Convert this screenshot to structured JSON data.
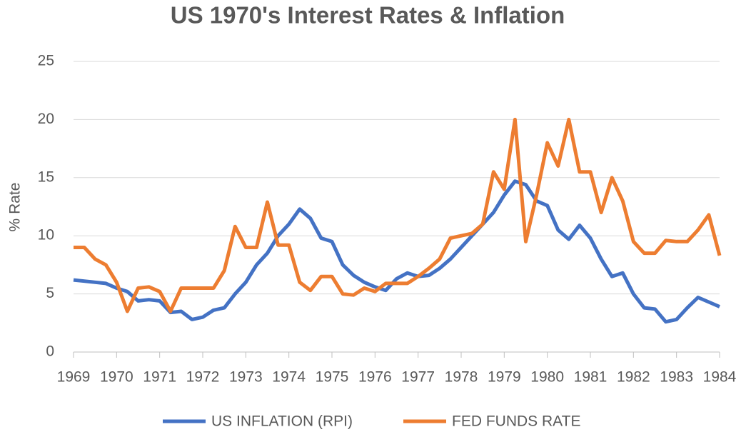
{
  "chart_data": {
    "type": "line",
    "title": "US 1970's Interest Rates & Inflation",
    "y_label": "% Rate",
    "x": [
      1969,
      1969.25,
      1969.5,
      1969.75,
      1970,
      1970.25,
      1970.5,
      1970.75,
      1971,
      1971.25,
      1971.5,
      1971.75,
      1972,
      1972.25,
      1972.5,
      1972.75,
      1973,
      1973.25,
      1973.5,
      1973.75,
      1974,
      1974.25,
      1974.5,
      1974.75,
      1975,
      1975.25,
      1975.5,
      1975.75,
      1976,
      1976.25,
      1976.5,
      1976.75,
      1977,
      1977.25,
      1977.5,
      1977.75,
      1978,
      1978.25,
      1978.5,
      1978.75,
      1979,
      1979.25,
      1979.5,
      1979.75,
      1980,
      1980.25,
      1980.5,
      1980.75,
      1981,
      1981.25,
      1981.5,
      1981.75,
      1982,
      1982.25,
      1982.5,
      1982.75,
      1983,
      1983.25,
      1983.5,
      1983.75,
      1984
    ],
    "series": [
      {
        "name": "US INFLATION (RPI)",
        "color": "#4472c4",
        "values": [
          6.2,
          6.1,
          6.0,
          5.9,
          5.5,
          5.2,
          4.4,
          4.5,
          4.4,
          3.4,
          3.5,
          2.8,
          3.0,
          3.6,
          3.8,
          5.0,
          6.0,
          7.5,
          8.5,
          10.0,
          11.0,
          12.3,
          11.5,
          9.8,
          9.5,
          7.5,
          6.6,
          6.0,
          5.6,
          5.3,
          6.3,
          6.8,
          6.5,
          6.6,
          7.2,
          8.0,
          9.0,
          10.0,
          11.0,
          12.0,
          13.5,
          14.7,
          14.4,
          13.0,
          12.6,
          10.5,
          9.7,
          10.9,
          9.8,
          8.0,
          6.5,
          6.8,
          5.0,
          3.8,
          3.7,
          2.6,
          2.8,
          3.8,
          4.7,
          4.3,
          3.9
        ]
      },
      {
        "name": "FED FUNDS RATE",
        "color": "#ed7d31",
        "values": [
          9.0,
          9.0,
          8.0,
          7.5,
          6.0,
          3.5,
          5.5,
          5.6,
          5.2,
          3.5,
          5.5,
          5.5,
          5.5,
          5.5,
          7.0,
          10.8,
          9.0,
          9.0,
          12.9,
          9.2,
          9.2,
          6.0,
          5.3,
          6.5,
          6.5,
          5.0,
          4.9,
          5.5,
          5.2,
          5.9,
          5.9,
          5.9,
          6.5,
          7.2,
          8.0,
          9.8,
          10.0,
          10.2,
          11.0,
          15.5,
          14.0,
          20.0,
          9.5,
          13.5,
          18.0,
          16.0,
          20.0,
          15.5,
          15.5,
          12.0,
          15.0,
          13.0,
          9.5,
          8.5,
          8.5,
          9.6,
          9.5,
          9.5,
          10.5,
          11.8,
          8.3
        ]
      }
    ],
    "xlim": [
      1969,
      1984
    ],
    "xticks": [
      1969,
      1970,
      1971,
      1972,
      1973,
      1974,
      1975,
      1976,
      1977,
      1978,
      1979,
      1980,
      1981,
      1982,
      1983,
      1984
    ],
    "ylim": [
      0,
      25
    ],
    "yticks": [
      0,
      5,
      10,
      15,
      20,
      25
    ],
    "grid": true,
    "legend": "bottom"
  }
}
